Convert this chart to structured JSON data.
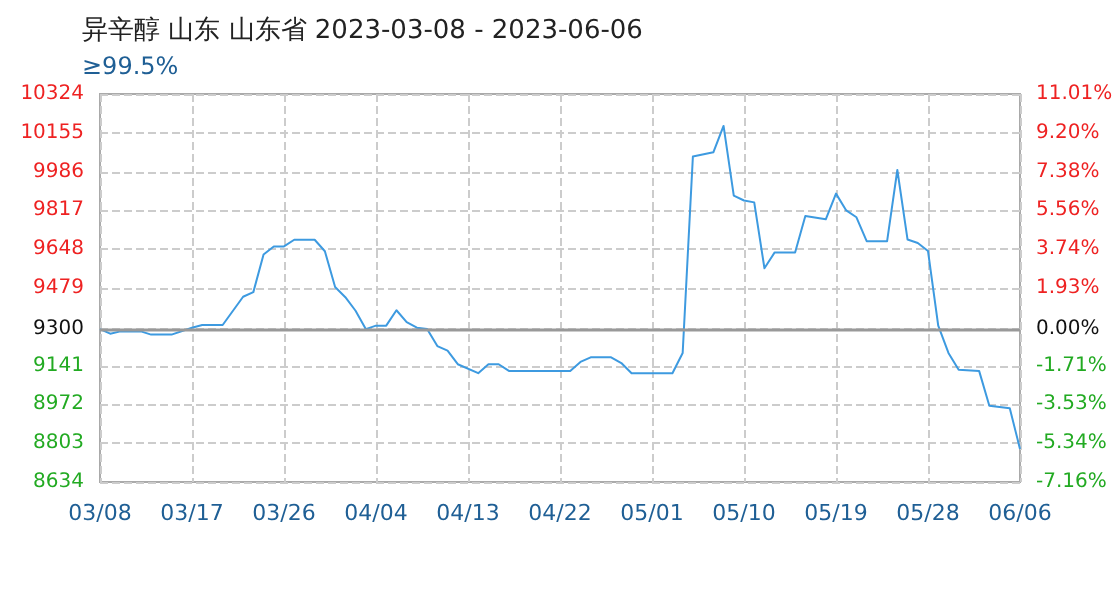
{
  "chart_data": {
    "type": "line",
    "title": "异辛醇 山东 山东省 2023-03-08 - 2023-06-06",
    "subtitle": "≥99.5%",
    "x": [
      "2023-03-08",
      "2023-03-09",
      "2023-03-10",
      "2023-03-12",
      "2023-03-13",
      "2023-03-15",
      "2023-03-17",
      "2023-03-18",
      "2023-03-20",
      "2023-03-22",
      "2023-03-23",
      "2023-03-24",
      "2023-03-25",
      "2023-03-26",
      "2023-03-27",
      "2023-03-29",
      "2023-03-30",
      "2023-03-31",
      "2023-04-01",
      "2023-04-02",
      "2023-04-03",
      "2023-04-04",
      "2023-04-05",
      "2023-04-06",
      "2023-04-07",
      "2023-04-08",
      "2023-04-09",
      "2023-04-10",
      "2023-04-11",
      "2023-04-12",
      "2023-04-14",
      "2023-04-15",
      "2023-04-16",
      "2023-04-17",
      "2023-04-23",
      "2023-04-24",
      "2023-04-25",
      "2023-04-27",
      "2023-04-28",
      "2023-04-29",
      "2023-05-03",
      "2023-05-04",
      "2023-05-05",
      "2023-05-07",
      "2023-05-08",
      "2023-05-09",
      "2023-05-10",
      "2023-05-11",
      "2023-05-12",
      "2023-05-13",
      "2023-05-15",
      "2023-05-16",
      "2023-05-18",
      "2023-05-19",
      "2023-05-20",
      "2023-05-21",
      "2023-05-22",
      "2023-05-24",
      "2023-05-25",
      "2023-05-26",
      "2023-05-27",
      "2023-05-28",
      "2023-05-29",
      "2023-05-30",
      "2023-05-31",
      "2023-06-02",
      "2023-06-03",
      "2023-06-05",
      "2023-06-06"
    ],
    "series": [
      {
        "color": "#3d9ae0",
        "values": [
          9300,
          9280,
          9290,
          9290,
          9276,
          9276,
          9306,
          9318,
          9318,
          9441,
          9461,
          9625,
          9660,
          9660,
          9689,
          9689,
          9639,
          9483,
          9439,
          9380,
          9300,
          9315,
          9315,
          9382,
          9330,
          9306,
          9300,
          9226,
          9206,
          9147,
          9108,
          9147,
          9147,
          9118,
          9118,
          9157,
          9177,
          9177,
          9152,
          9108,
          9108,
          9196,
          10052,
          10070,
          10185,
          9881,
          9860,
          9852,
          9565,
          9634,
          9634,
          9793,
          9778,
          9890,
          9817,
          9787,
          9683,
          9683,
          9993,
          9690,
          9675,
          9640,
          9315,
          9196,
          9123,
          9118,
          8966,
          8955,
          8778
        ]
      }
    ],
    "xlim": [
      "2023-03-08",
      "2023-06-06"
    ],
    "xticks": [
      {
        "value": "2023-03-08",
        "label": "03/08"
      },
      {
        "value": "2023-03-17",
        "label": "03/17"
      },
      {
        "value": "2023-03-26",
        "label": "03/26"
      },
      {
        "value": "2023-04-04",
        "label": "04/04"
      },
      {
        "value": "2023-04-13",
        "label": "04/13"
      },
      {
        "value": "2023-04-22",
        "label": "04/22"
      },
      {
        "value": "2023-05-01",
        "label": "05/01"
      },
      {
        "value": "2023-05-10",
        "label": "05/10"
      },
      {
        "value": "2023-05-19",
        "label": "05/19"
      },
      {
        "value": "2023-05-28",
        "label": "05/28"
      },
      {
        "value": "2023-06-06",
        "label": "06/06"
      }
    ],
    "ylim": [
      8634,
      10324
    ],
    "yticks": [
      8634,
      8803,
      8972,
      9141,
      9300,
      9479,
      9648,
      9817,
      9986,
      10155,
      10324
    ],
    "y2lim": [
      -7.16,
      11.01
    ],
    "y2ticks": [
      {
        "value": -7.16,
        "label": "-7.16%"
      },
      {
        "value": -5.34,
        "label": "-5.34%"
      },
      {
        "value": -3.53,
        "label": "-3.53%"
      },
      {
        "value": -1.71,
        "label": "-1.71%"
      },
      {
        "value": 0,
        "label": "0.00%"
      },
      {
        "value": 1.93,
        "label": "1.93%"
      },
      {
        "value": 3.74,
        "label": "3.74%"
      },
      {
        "value": 5.56,
        "label": "5.56%"
      },
      {
        "value": 7.38,
        "label": "7.38%"
      },
      {
        "value": 9.2,
        "label": "9.20%"
      },
      {
        "value": 11.01,
        "label": "11.01%"
      }
    ],
    "ref_lines": [
      {
        "axis": "y",
        "value": 9300,
        "color": "#999999"
      }
    ],
    "grid": true,
    "marker": "none",
    "line_style": "solid"
  }
}
